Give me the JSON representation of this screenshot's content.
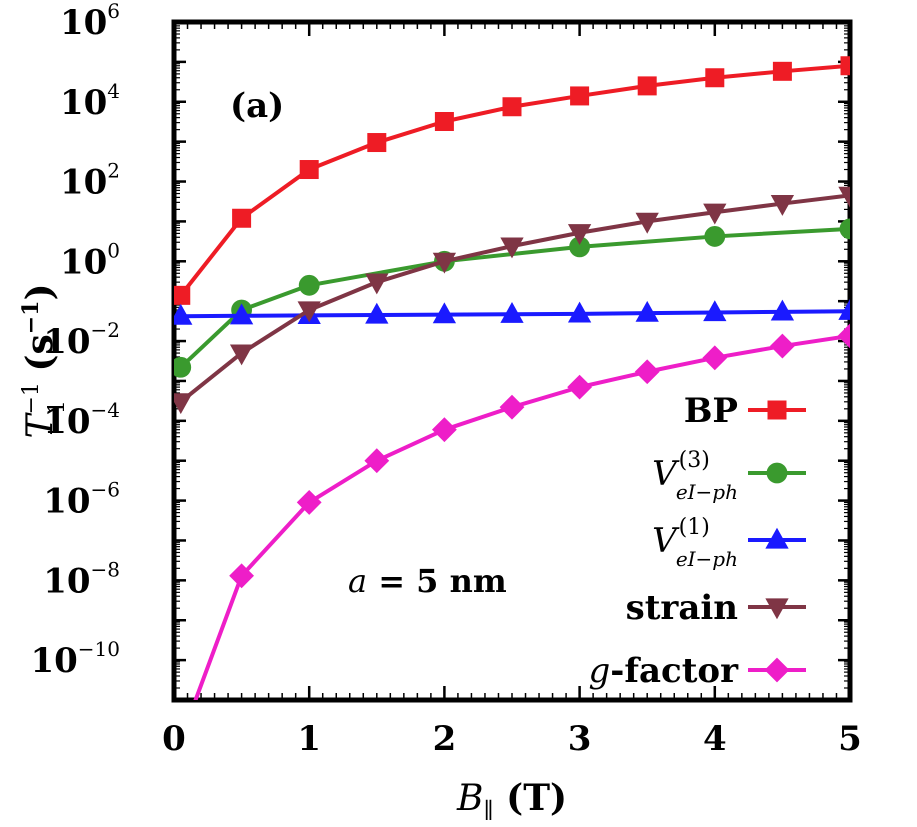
{
  "chart_data": {
    "type": "line",
    "panel_label": "(a)",
    "annotation": {
      "math": "a",
      "text": " = 5 nm"
    },
    "xlabel": {
      "main": "B",
      "sub": "∥",
      "rest": " (T)"
    },
    "ylabel": {
      "main": "T",
      "sup": "−1",
      "sub": "1",
      "rest": " (s",
      "rest_sup": "−1",
      "rest_end": ")"
    },
    "x_ticks": [
      {
        "value": 0,
        "label": "0"
      },
      {
        "value": 1,
        "label": "1"
      },
      {
        "value": 2,
        "label": "2"
      },
      {
        "value": 3,
        "label": "3"
      },
      {
        "value": 4,
        "label": "4"
      },
      {
        "value": 5,
        "label": "5"
      }
    ],
    "y_ticks": [
      {
        "value": -10,
        "base": "10",
        "exp": "−10"
      },
      {
        "value": -8,
        "base": "10",
        "exp": "−8"
      },
      {
        "value": -6,
        "base": "10",
        "exp": "−6"
      },
      {
        "value": -4,
        "base": "10",
        "exp": "−4"
      },
      {
        "value": -2,
        "base": "10",
        "exp": "−2"
      },
      {
        "value": 0,
        "base": "10",
        "exp": "0"
      },
      {
        "value": 2,
        "base": "10",
        "exp": "2"
      },
      {
        "value": 4,
        "base": "10",
        "exp": "4"
      },
      {
        "value": 6,
        "base": "10",
        "exp": "6"
      }
    ],
    "xlim": [
      0,
      5
    ],
    "ylim_log10": [
      -11,
      6
    ],
    "y_scale": "log",
    "grid": false,
    "legend_position": "lower-right",
    "series": [
      {
        "name": "BP",
        "name_parts": {
          "text": "BP"
        },
        "color": "#ee1c25",
        "marker": "square",
        "x": [
          0.05,
          0.5,
          1.0,
          1.5,
          2.0,
          2.5,
          3.0,
          3.5,
          4.0,
          4.5,
          5.0
        ],
        "y": [
          0.14,
          12,
          200,
          950,
          3200,
          7500,
          14000,
          25000,
          40000,
          58000,
          80000
        ]
      },
      {
        "name": "V(3) eI−ph",
        "name_parts": {
          "math": "V",
          "sup": "(3)",
          "sub": "eI−ph"
        },
        "color": "#3a9a2e",
        "marker": "circle",
        "x": [
          0.05,
          0.5,
          1.0,
          2.0,
          3.0,
          4.0,
          5.0
        ],
        "y": [
          0.0022,
          0.06,
          0.25,
          1.0,
          2.3,
          4.2,
          6.5
        ]
      },
      {
        "name": "V(1) eI−ph",
        "name_parts": {
          "math": "V",
          "sup": "(1)",
          "sub": "eI−ph"
        },
        "color": "#1a1aff",
        "marker": "triangle-up",
        "x": [
          0.05,
          0.5,
          1.0,
          1.5,
          2.0,
          2.5,
          3.0,
          3.5,
          4.0,
          4.5,
          5.0
        ],
        "y": [
          0.042,
          0.043,
          0.044,
          0.045,
          0.046,
          0.047,
          0.048,
          0.05,
          0.052,
          0.054,
          0.056
        ]
      },
      {
        "name": "strain",
        "name_parts": {
          "text": "strain"
        },
        "color": "#7f3545",
        "marker": "triangle-down",
        "x": [
          0.05,
          0.5,
          1.0,
          1.5,
          2.0,
          2.5,
          3.0,
          3.5,
          4.0,
          4.5,
          5.0
        ],
        "y": [
          0.0003,
          0.005,
          0.06,
          0.3,
          1.0,
          2.4,
          5.2,
          10,
          17,
          28,
          45
        ]
      },
      {
        "name": "g-factor",
        "name_parts": {
          "math": "g",
          "text": "-factor"
        },
        "color": "#ee1ec8",
        "marker": "diamond",
        "x": [
          0.05,
          0.5,
          1.0,
          1.5,
          2.0,
          2.5,
          3.0,
          3.5,
          4.0,
          4.5,
          5.0
        ],
        "y": [
          1e-12,
          1.3e-08,
          9e-07,
          1e-05,
          6e-05,
          0.00022,
          0.0007,
          0.0017,
          0.0038,
          0.0075,
          0.0135
        ]
      }
    ]
  }
}
